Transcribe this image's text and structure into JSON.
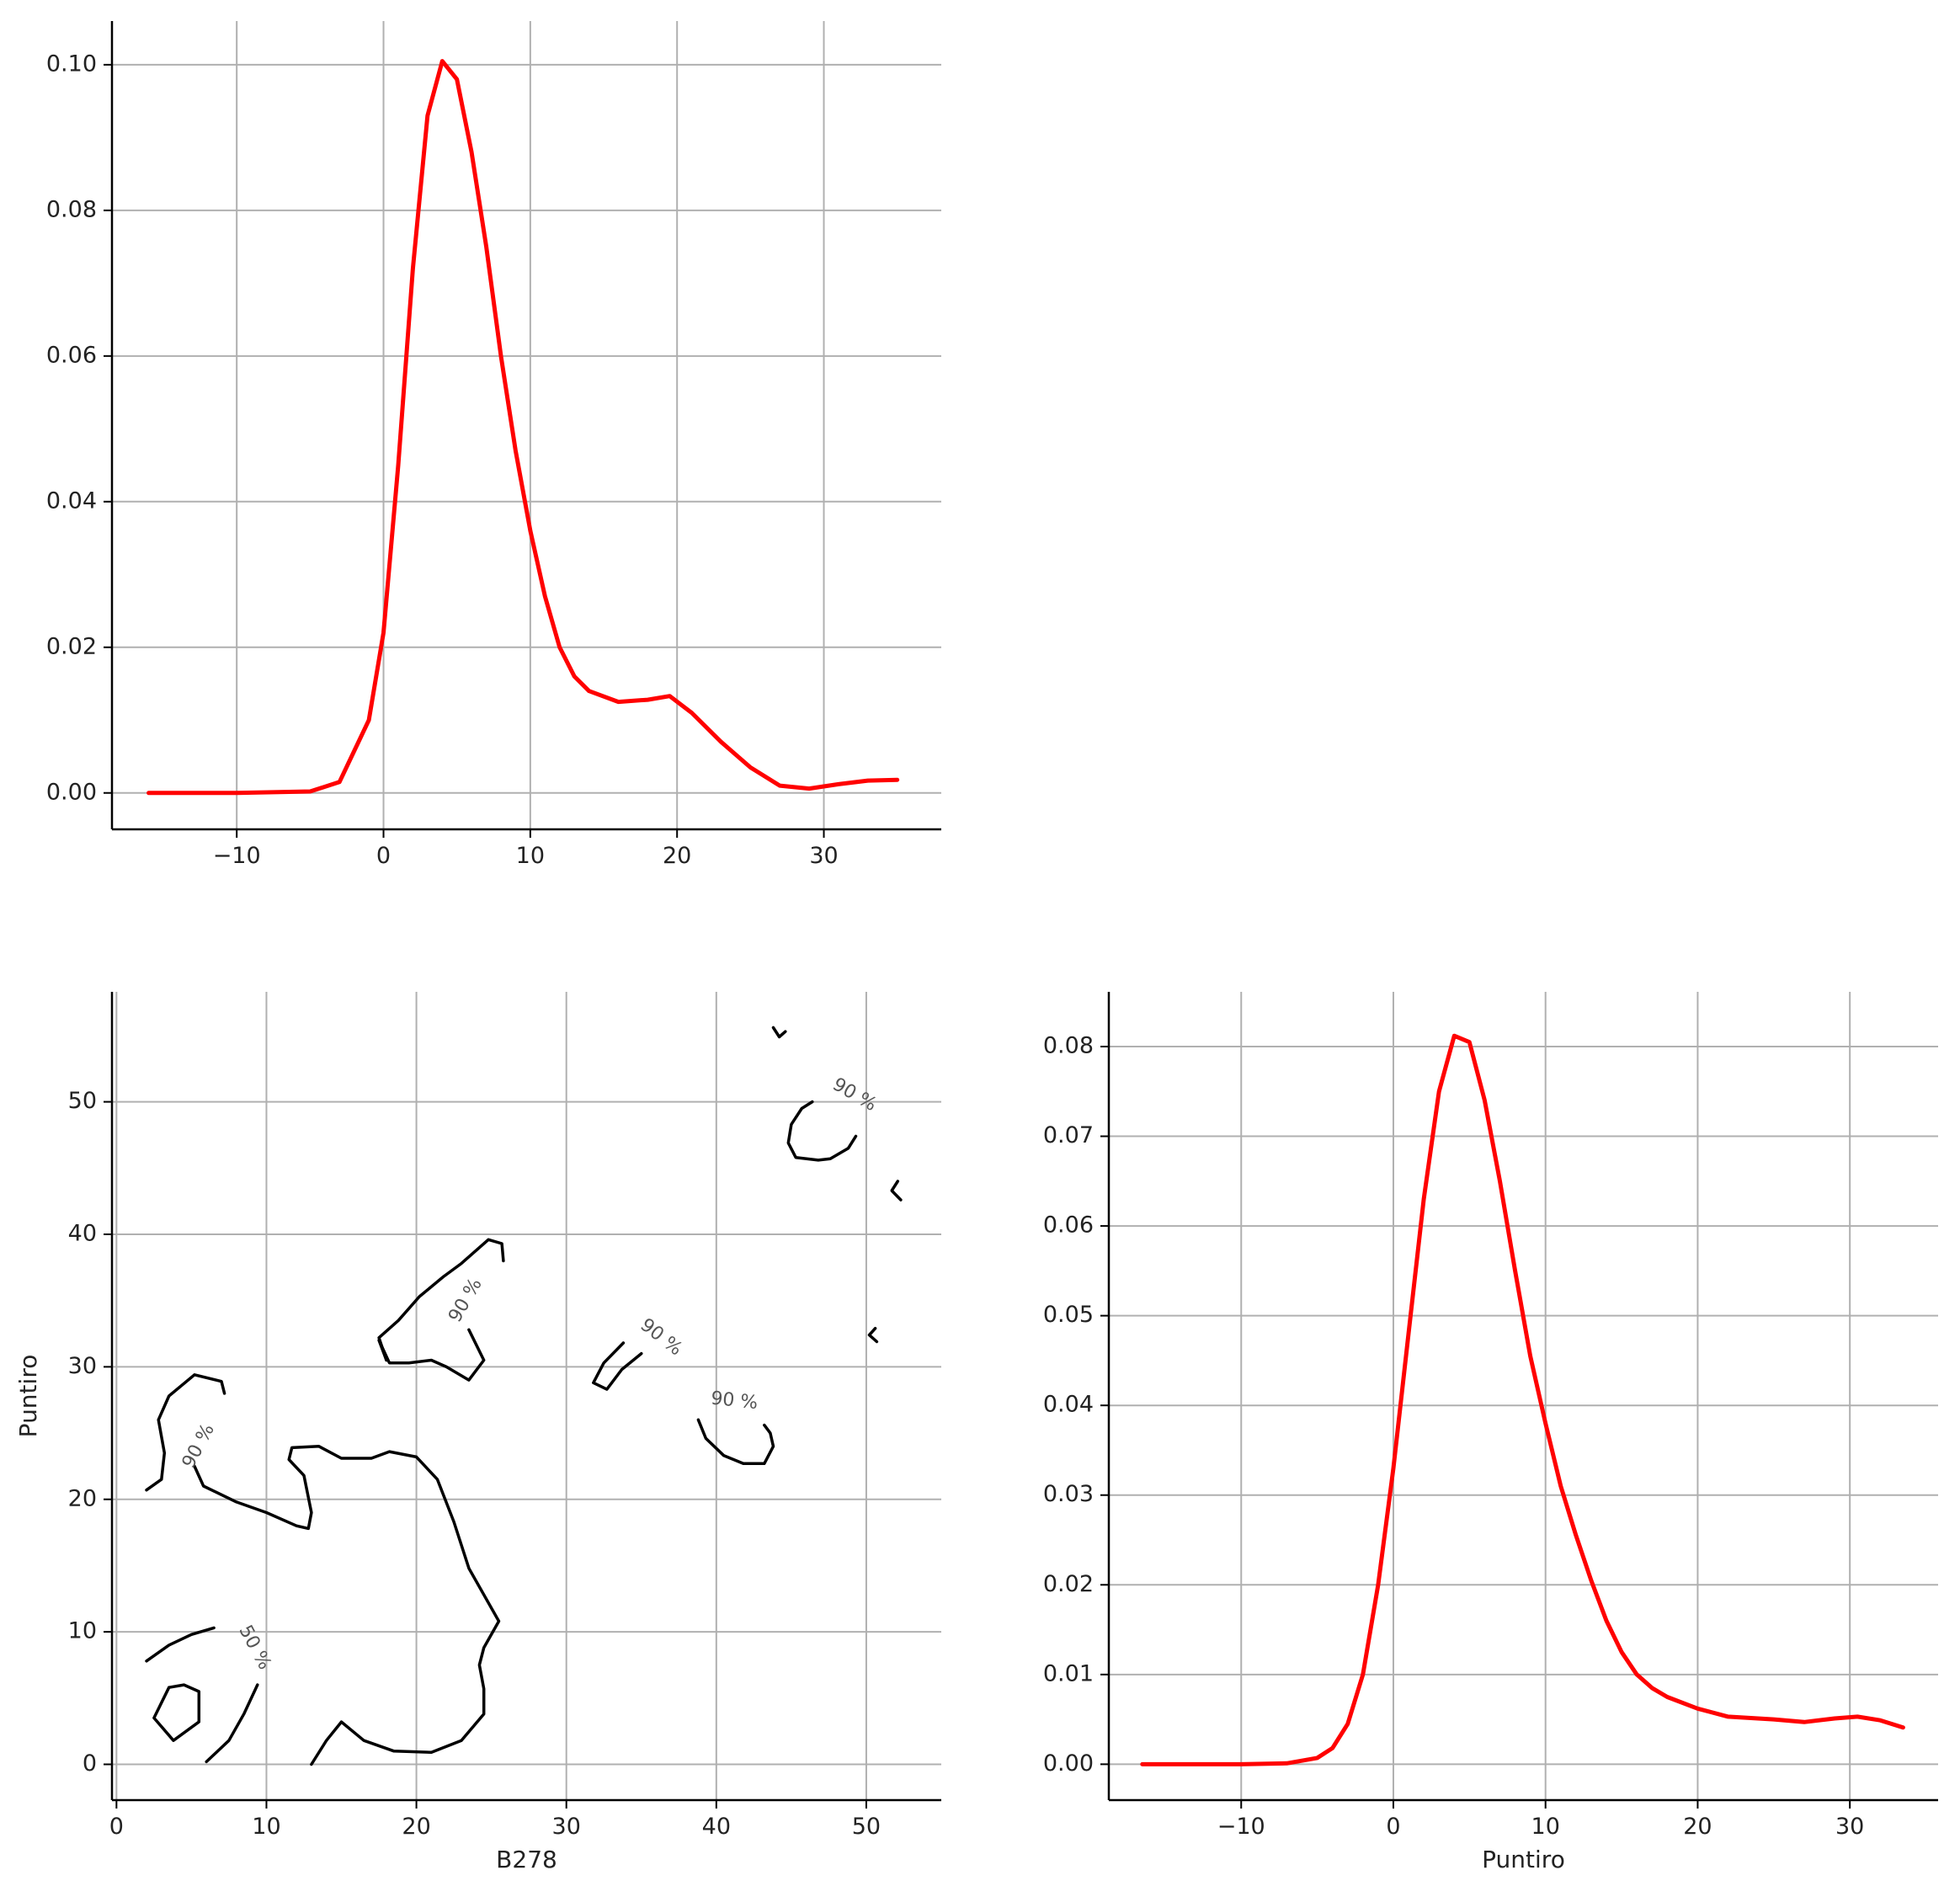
{
  "chart_data": [
    {
      "id": "kde-b278",
      "type": "line",
      "title": "",
      "xlabel": "",
      "ylabel": "",
      "xlim": [
        -18.5,
        38
      ],
      "ylim": [
        -0.005,
        0.106
      ],
      "xticks": [
        -10,
        0,
        10,
        20,
        30
      ],
      "xtick_labels": [
        "−10",
        "0",
        "10",
        "20",
        "30"
      ],
      "yticks": [
        0,
        0.02,
        0.04,
        0.06,
        0.08,
        0.1
      ],
      "ytick_labels": [
        "0.00",
        "0.02",
        "0.04",
        "0.06",
        "0.08",
        "0.10"
      ],
      "grid": true,
      "series": [
        {
          "color": "#ff0000",
          "x": [
            -16,
            -10,
            -5,
            -3,
            -1,
            0,
            1,
            2,
            3,
            4,
            5,
            6,
            7,
            8,
            9,
            10,
            11,
            12,
            13,
            14,
            16,
            18,
            19.5,
            21,
            23,
            25,
            27,
            29,
            31,
            33,
            35
          ],
          "y": [
            0,
            0,
            0.0002,
            0.0015,
            0.01,
            0.022,
            0.045,
            0.072,
            0.093,
            0.1005,
            0.098,
            0.088,
            0.075,
            0.06,
            0.047,
            0.036,
            0.027,
            0.02,
            0.016,
            0.014,
            0.0125,
            0.0128,
            0.0133,
            0.011,
            0.007,
            0.0035,
            0.001,
            0.0006,
            0.0012,
            0.0017,
            0.0018
          ]
        }
      ]
    },
    {
      "id": "contour-b278-puntiro",
      "type": "line",
      "title": "",
      "xlabel": "B278",
      "ylabel": "Puntiro",
      "xlim": [
        -0.3,
        55
      ],
      "ylim": [
        -2.7,
        58.3
      ],
      "xticks": [
        0,
        10,
        20,
        30,
        40,
        50
      ],
      "xtick_labels": [
        "0",
        "10",
        "20",
        "30",
        "40",
        "50"
      ],
      "yticks": [
        0,
        10,
        20,
        30,
        40,
        50
      ],
      "ytick_labels": [
        "0",
        "10",
        "20",
        "30",
        "40",
        "50"
      ],
      "grid": true,
      "contour_labels": [
        {
          "text": "90 %",
          "x": 5.5,
          "y": 24,
          "angle": -62
        },
        {
          "text": "90 %",
          "x": 23.3,
          "y": 35,
          "angle": -60
        },
        {
          "text": "90 %",
          "x": 36.3,
          "y": 32.2,
          "angle": 38
        },
        {
          "text": "90 %",
          "x": 41.2,
          "y": 27.4,
          "angle": 6
        },
        {
          "text": "90 %",
          "x": 49.2,
          "y": 50.5,
          "angle": 30
        },
        {
          "text": "50 %",
          "x": 9.2,
          "y": 8.8,
          "angle": 62
        }
      ],
      "series": [
        {
          "color": "#000000",
          "x": [
            2,
            3,
            3.2,
            2.8,
            3.5,
            5.2,
            7,
            7.2
          ],
          "y": [
            20.7,
            21.5,
            23.5,
            26,
            27.8,
            29.4,
            28.9,
            28
          ]
        },
        {
          "color": "#000000",
          "x": [
            5.2,
            5.8,
            8,
            10,
            12,
            12.8,
            13,
            12.5,
            11.5,
            11.7,
            13.5,
            15,
            17,
            18.2,
            20,
            21.4,
            22.5,
            23.5,
            25.5,
            24.5,
            24.2,
            24.5,
            24.5,
            23,
            21,
            18.5,
            16.5,
            15,
            14,
            13
          ],
          "y": [
            22.5,
            21,
            19.8,
            19,
            18,
            17.8,
            19,
            21.8,
            23,
            23.9,
            24,
            23.1,
            23.1,
            23.6,
            23.2,
            21.5,
            18.3,
            14.8,
            10.8,
            8.8,
            7.5,
            5.7,
            3.8,
            1.8,
            0.9,
            1,
            1.8,
            3.2,
            1.8,
            0
          ]
        },
        {
          "color": "#000000",
          "x": [
            2,
            3.5,
            5,
            6.5
          ],
          "y": [
            7.8,
            9,
            9.8,
            10.3
          ]
        },
        {
          "color": "#000000",
          "x": [
            3.5,
            2.5,
            3.8,
            5.5,
            5.5,
            4.5,
            3.5
          ],
          "y": [
            5.8,
            3.5,
            1.8,
            3.2,
            5.5,
            6,
            5.8
          ]
        },
        {
          "color": "#000000",
          "x": [
            6,
            7.5,
            8.5,
            9.4
          ],
          "y": [
            0.2,
            1.8,
            3.8,
            6
          ]
        },
        {
          "color": "#000000",
          "x": [
            18,
            17.5,
            18.8,
            20.2,
            21.8,
            23,
            24.8,
            25.7,
            25.8
          ],
          "y": [
            30.5,
            32.2,
            33.5,
            35.3,
            36.8,
            37.8,
            39.6,
            39.3,
            38
          ]
        },
        {
          "color": "#000000",
          "x": [
            23.5,
            24.5,
            23.5,
            22,
            21,
            19.5,
            18.2,
            17.5,
            18
          ],
          "y": [
            32.8,
            30.5,
            29,
            30,
            30.5,
            30.3,
            30.3,
            32,
            30.5
          ]
        },
        {
          "color": "#000000",
          "x": [
            33.8,
            32.5,
            31.8,
            32.7,
            33.7,
            35
          ],
          "y": [
            31.8,
            30.3,
            28.8,
            28.3,
            29.8,
            31
          ]
        },
        {
          "color": "#000000",
          "x": [
            38.8,
            39.3,
            40.5,
            41.8,
            43.2,
            43.8,
            43.6,
            43.2
          ],
          "y": [
            26,
            24.6,
            23.3,
            22.7,
            22.7,
            24,
            25,
            25.6
          ]
        },
        {
          "color": "#000000",
          "x": [
            46.4,
            45.7,
            45,
            44.8,
            45.3,
            46.8,
            47.6,
            48.8,
            49.3
          ],
          "y": [
            50,
            49.5,
            48.3,
            46.9,
            45.8,
            45.6,
            45.7,
            46.5,
            47.4
          ]
        },
        {
          "color": "#000000",
          "x": [
            43.8,
            44.2,
            44.6
          ],
          "y": [
            55.6,
            54.9,
            55.3
          ]
        },
        {
          "color": "#000000",
          "x": [
            52.1,
            51.7,
            52.3
          ],
          "y": [
            44,
            43.3,
            42.6
          ]
        },
        {
          "color": "#000000",
          "x": [
            50.6,
            50.2,
            50.7
          ],
          "y": [
            32.9,
            32.4,
            31.9
          ]
        }
      ]
    },
    {
      "id": "kde-puntiro",
      "type": "line",
      "title": "",
      "xlabel": "Puntiro",
      "ylabel": "",
      "xlim": [
        -18.7,
        35.8
      ],
      "ylim": [
        -0.004,
        0.0861
      ],
      "xticks": [
        -10,
        0,
        10,
        20,
        30
      ],
      "xtick_labels": [
        "−10",
        "0",
        "10",
        "20",
        "30"
      ],
      "yticks": [
        0,
        0.01,
        0.02,
        0.03,
        0.04,
        0.05,
        0.06,
        0.07,
        0.08
      ],
      "ytick_labels": [
        "0.00",
        "0.01",
        "0.02",
        "0.03",
        "0.04",
        "0.05",
        "0.06",
        "0.07",
        "0.08"
      ],
      "grid": true,
      "series": [
        {
          "color": "#ff0000",
          "x": [
            -16.5,
            -10,
            -7,
            -5,
            -4,
            -3,
            -2,
            -1,
            0,
            1,
            2,
            3,
            4,
            5,
            6,
            7,
            8,
            9,
            10,
            11,
            12,
            13,
            14,
            15,
            16,
            17,
            18,
            20,
            22,
            25,
            27,
            29,
            30.5,
            32,
            33.5
          ],
          "y": [
            0,
            0,
            0.0001,
            0.0007,
            0.0018,
            0.0045,
            0.01,
            0.02,
            0.033,
            0.048,
            0.063,
            0.075,
            0.0812,
            0.0805,
            0.074,
            0.065,
            0.055,
            0.0455,
            0.038,
            0.031,
            0.0255,
            0.0205,
            0.016,
            0.0125,
            0.01,
            0.0085,
            0.0075,
            0.0062,
            0.0053,
            0.005,
            0.0047,
            0.0051,
            0.0053,
            0.0049,
            0.0041
          ]
        }
      ]
    }
  ]
}
